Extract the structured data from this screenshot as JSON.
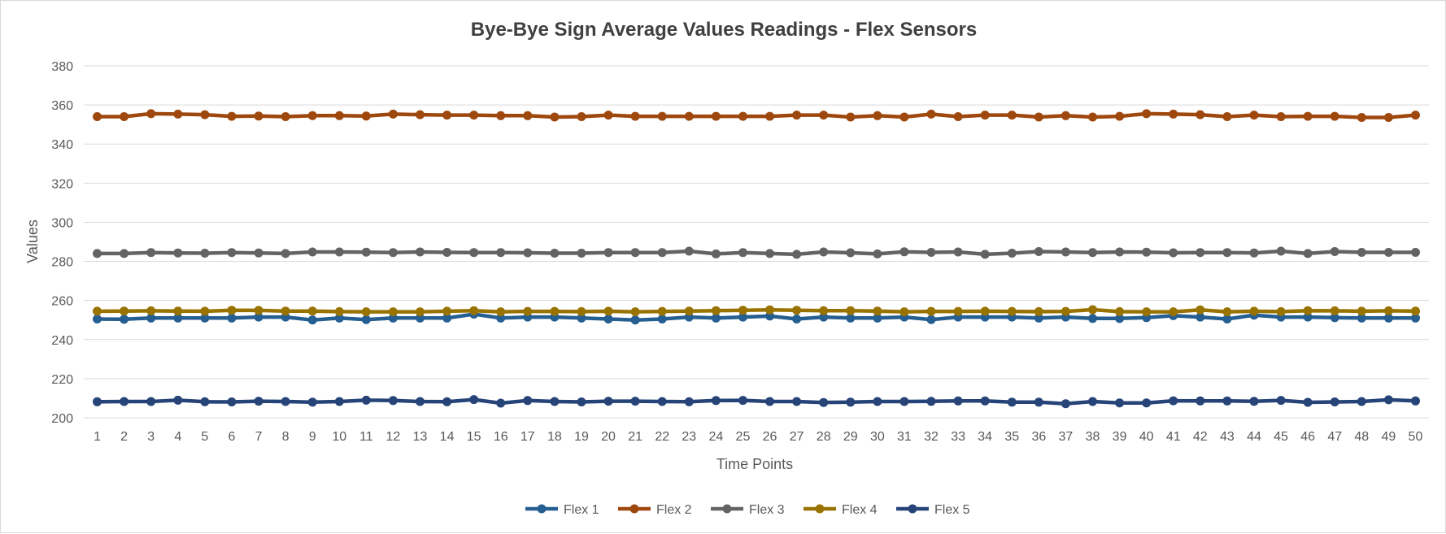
{
  "chart_data": {
    "type": "line",
    "title": "Bye-Bye Sign Average Values Readings - Flex Sensors",
    "xlabel": "Time Points",
    "ylabel": "Values",
    "ylim": [
      200,
      380
    ],
    "yticks": [
      200,
      220,
      240,
      260,
      280,
      300,
      320,
      340,
      360,
      380
    ],
    "grid": true,
    "legend": "bottom",
    "x": [
      1,
      2,
      3,
      4,
      5,
      6,
      7,
      8,
      9,
      10,
      11,
      12,
      13,
      14,
      15,
      16,
      17,
      18,
      19,
      20,
      21,
      22,
      23,
      24,
      25,
      26,
      27,
      28,
      29,
      30,
      31,
      32,
      33,
      34,
      35,
      36,
      37,
      38,
      39,
      40,
      41,
      42,
      43,
      44,
      45,
      46,
      47,
      48,
      49,
      50
    ],
    "series": [
      {
        "name": "Flex 1",
        "color": "#255E91",
        "values": [
          250.5,
          250.4,
          251,
          251,
          251,
          251,
          251.5,
          251.5,
          250,
          251,
          250.2,
          251,
          251,
          251,
          253,
          251,
          251.5,
          251.5,
          251,
          250.5,
          250,
          250.5,
          251.5,
          251,
          251.5,
          252,
          250.5,
          251.5,
          251,
          251,
          251.5,
          250.2,
          251.5,
          251.5,
          251.5,
          251,
          251.5,
          250.8,
          250.8,
          251.2,
          252.2,
          251.5,
          250.5,
          252.5,
          251.5,
          251.5,
          251.2,
          251,
          251,
          251
        ]
      },
      {
        "name": "Flex 2",
        "color": "#9E480E",
        "values": [
          354,
          354,
          355.5,
          355.3,
          355,
          354.2,
          354.3,
          354,
          354.5,
          354.5,
          354.3,
          355.3,
          355,
          354.8,
          354.8,
          354.5,
          354.5,
          353.8,
          354,
          354.8,
          354.2,
          354.2,
          354.2,
          354.2,
          354.2,
          354.2,
          354.8,
          354.8,
          353.8,
          354.5,
          353.8,
          355.3,
          354,
          354.8,
          354.8,
          353.8,
          354.5,
          353.8,
          354.2,
          355.5,
          355.3,
          355,
          354,
          354.8,
          354,
          354.2,
          354.2,
          353.6,
          353.6,
          354.8
        ]
      },
      {
        "name": "Flex 3",
        "color": "#636363",
        "values": [
          284,
          284,
          284.5,
          284.3,
          284.2,
          284.5,
          284.3,
          284,
          284.8,
          284.8,
          284.7,
          284.5,
          284.8,
          284.6,
          284.5,
          284.5,
          284.4,
          284.2,
          284.2,
          284.5,
          284.5,
          284.5,
          285.2,
          283.8,
          284.5,
          284,
          283.6,
          284.8,
          284.4,
          283.8,
          284.9,
          284.6,
          284.8,
          283.6,
          284.2,
          285,
          284.8,
          284.5,
          284.8,
          284.7,
          284.4,
          284.5,
          284.5,
          284.3,
          285.2,
          284,
          285,
          284.6,
          284.6,
          284.6
        ]
      },
      {
        "name": "Flex 4",
        "color": "#997300",
        "values": [
          254.5,
          254.6,
          254.7,
          254.6,
          254.5,
          255,
          254.9,
          254.6,
          254.6,
          254.3,
          254.2,
          254.2,
          254.2,
          254.5,
          254.8,
          254.2,
          254.4,
          254.4,
          254.3,
          254.5,
          254.2,
          254.4,
          254.6,
          254.8,
          255,
          255.2,
          255,
          254.8,
          254.8,
          254.6,
          254.2,
          254.4,
          254.4,
          254.5,
          254.4,
          254.3,
          254.4,
          255.3,
          254.3,
          254.2,
          254.2,
          255.2,
          254.2,
          254.5,
          254.3,
          254.8,
          254.7,
          254.5,
          254.7,
          254.6
        ]
      },
      {
        "name": "Flex 5",
        "color": "#264478",
        "values": [
          208.2,
          208.3,
          208.3,
          209,
          208.2,
          208.1,
          208.5,
          208.3,
          208,
          208.3,
          209,
          208.8,
          208.3,
          208.2,
          209.3,
          207.5,
          208.8,
          208.3,
          208.1,
          208.5,
          208.5,
          208.3,
          208.2,
          208.8,
          208.9,
          208.3,
          208.3,
          207.8,
          208,
          208.3,
          208.3,
          208.4,
          208.6,
          208.6,
          208,
          208,
          207.2,
          208.3,
          207.6,
          207.6,
          208.7,
          208.6,
          208.6,
          208.4,
          208.9,
          207.9,
          208.1,
          208.3,
          209.2,
          208.6
        ]
      }
    ]
  }
}
